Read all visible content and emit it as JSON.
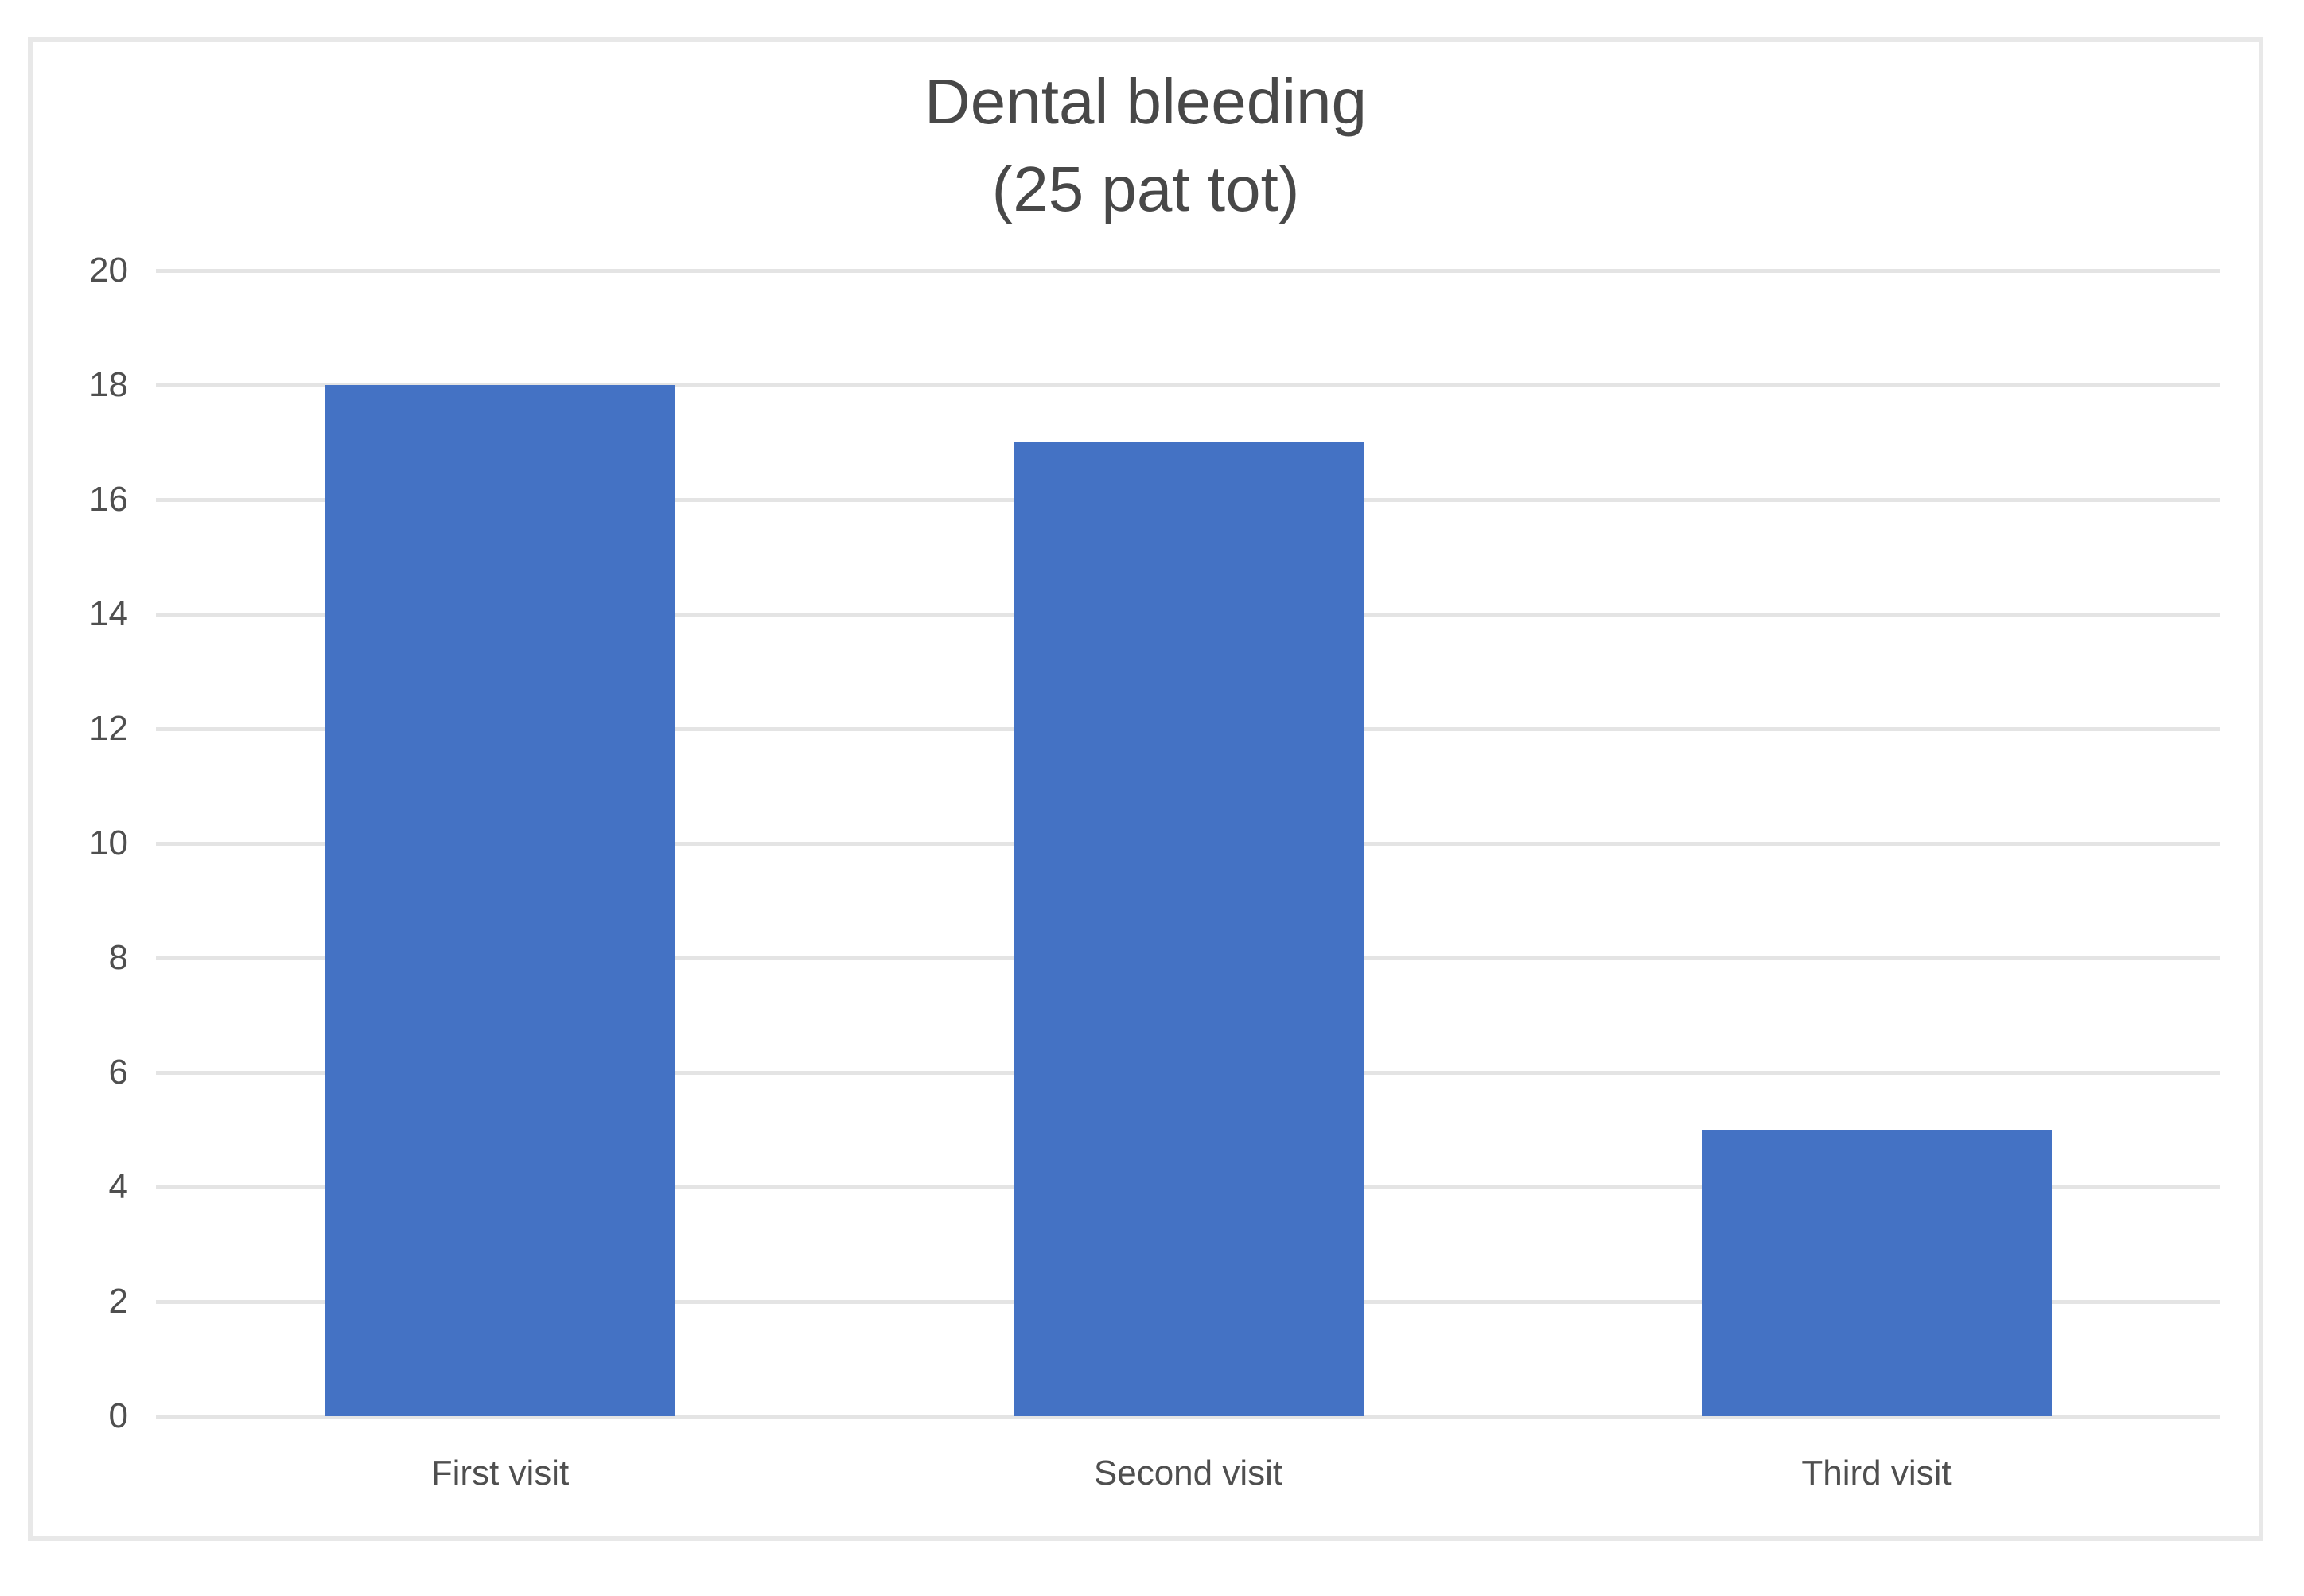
{
  "chart_data": {
    "type": "bar",
    "title": "Dental bleeding (25 pat tot)",
    "title_lines": [
      "Dental bleeding",
      "(25 pat tot)"
    ],
    "categories": [
      "First visit",
      "Second visit",
      "Third visit"
    ],
    "values": [
      18,
      17,
      5
    ],
    "xlabel": "",
    "ylabel": "",
    "ylim": [
      0,
      20
    ],
    "ytick_step": 2,
    "yticks": [
      0,
      2,
      4,
      6,
      8,
      10,
      12,
      14,
      16,
      18,
      20
    ],
    "grid": true,
    "legend": "none",
    "colors": {
      "bar": "#4472c4",
      "gridline": "#e4e4e4",
      "axis_label": "#4f4f4f",
      "title": "#484848",
      "frame_border": "#e8e8e8",
      "background": "#ffffff"
    }
  }
}
